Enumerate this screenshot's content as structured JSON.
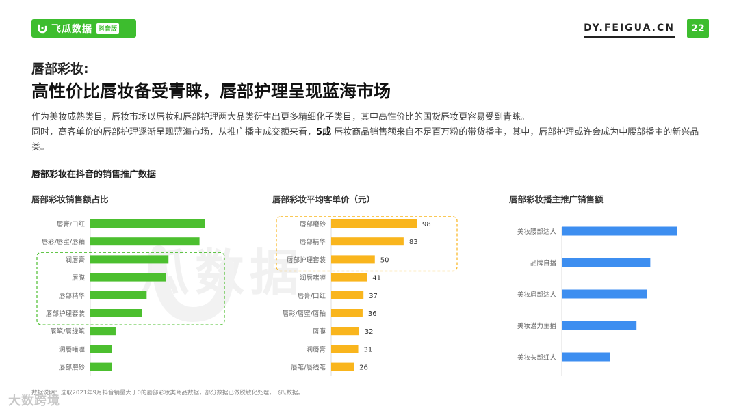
{
  "header": {
    "logo_text": "飞瓜数据",
    "logo_badge": "抖音版",
    "site": "DY.FEIGUA.CN",
    "page_number": "22",
    "brand_color": "#3dbd2e"
  },
  "kicker": "唇部彩妆:",
  "headline": "高性价比唇妆备受青睐，唇部护理呈现蓝海市场",
  "body": {
    "p1": "作为美妆成熟类目，唇妆市场以唇妆和唇部护理两大品类衍生出更多精细化子类目，其中高性价比的国货唇妆更容易受到青睐。",
    "p2_before": "同时，高客单价的唇部护理逐渐呈现蓝海市场，从推广播主成交额来看，",
    "p2_bold": "5成",
    "p2_after": " 唇妆商品销售额来自不足百万粉的带货播主，其中，唇部护理或许会成为中腰部播主的新兴品类。"
  },
  "section_title": "唇部彩妆在抖音的销售推广数据",
  "note": "数据说明：选取2021年9月抖音销量大于0的唇部彩妆类商品数据，部分数据已做脱敏化处理，飞瓜数据。",
  "watermark": "瓜数据",
  "corner_watermark": "大数跨境",
  "chart_data": [
    {
      "type": "bar",
      "orientation": "horizontal",
      "title": "唇部彩妆销售额占比",
      "color": "#4cbf2f",
      "categories": [
        "唇膏/口红",
        "唇彩/唇蜜/唇釉",
        "润唇膏",
        "唇膜",
        "唇部精华",
        "唇部护理套装",
        "唇笔/唇线笔",
        "润唇啫喱",
        "唇部磨砂"
      ],
      "values": [
        100,
        95,
        68,
        66,
        49,
        45,
        22,
        19,
        19
      ],
      "highlight": [
        "润唇膏",
        "唇膜",
        "唇部精华",
        "唇部护理套装"
      ]
    },
    {
      "type": "bar",
      "orientation": "horizontal",
      "title": "唇部彩妆平均客单价（元）",
      "color": "#f9b51d",
      "categories": [
        "唇部磨砂",
        "唇部精华",
        "唇部护理套装",
        "润唇啫喱",
        "唇膏/口红",
        "唇彩/唇蜜/唇釉",
        "唇膜",
        "润唇膏",
        "唇笔/唇线笔"
      ],
      "values": [
        98,
        83,
        50,
        41,
        37,
        36,
        32,
        31,
        26
      ],
      "data_labels": [
        "98",
        "83",
        "50",
        "41",
        "37",
        "36",
        "32",
        "31",
        "26"
      ],
      "highlight": [
        "唇部磨砂",
        "唇部精华",
        "唇部护理套装"
      ]
    },
    {
      "type": "bar",
      "orientation": "horizontal",
      "title": "唇部彩妆播主推广销售额",
      "color": "#3d8ef0",
      "categories": [
        "美妆腰部达人",
        "品牌自播",
        "美妆肩部达人",
        "美妆潜力主播",
        "美妆头部红人"
      ],
      "values": [
        100,
        77,
        74,
        65,
        42
      ]
    }
  ]
}
